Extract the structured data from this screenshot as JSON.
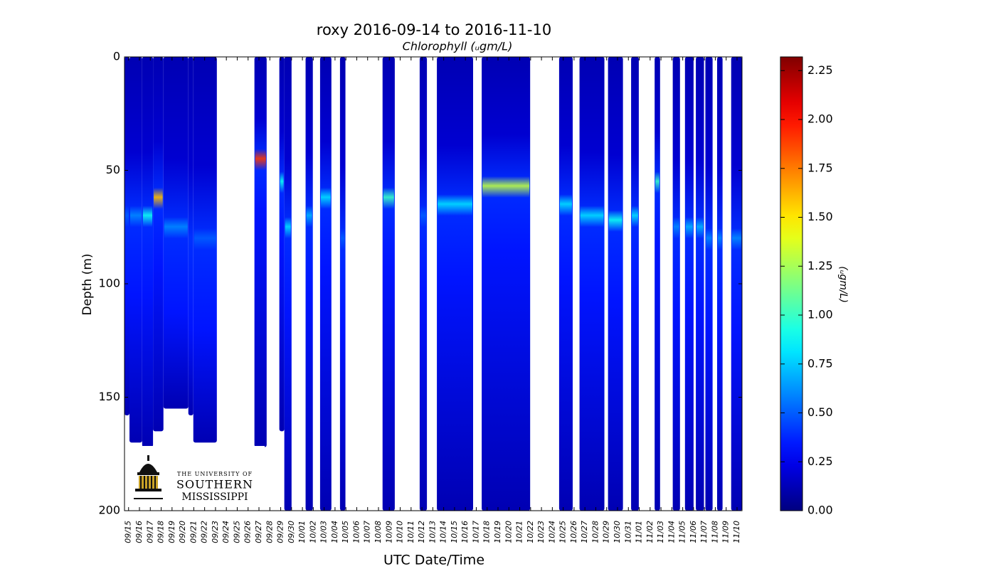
{
  "chart_data": {
    "type": "section",
    "title": "roxy 2016-09-14 to 2016-11-10",
    "subtitle": "Chlorophyll (ᵤgm/L)",
    "y_label": "Depth (m)",
    "x_label": "UTC Date/Time",
    "colorbar_label": "(ᵤgm/L)",
    "ylim": [
      0,
      200
    ],
    "y_inverted": true,
    "yticks": [
      0,
      50,
      100,
      150,
      200
    ],
    "xlim": [
      "09/14 15:00",
      "11/10 11:00"
    ],
    "xticks": [
      "09/15",
      "09/16",
      "09/17",
      "09/18",
      "09/19",
      "09/20",
      "09/21",
      "09/22",
      "09/23",
      "09/24",
      "09/25",
      "09/26",
      "09/27",
      "09/28",
      "09/29",
      "09/30",
      "10/01",
      "10/02",
      "10/03",
      "10/04",
      "10/05",
      "10/06",
      "10/07",
      "10/08",
      "10/09",
      "10/10",
      "10/11",
      "10/12",
      "10/13",
      "10/14",
      "10/15",
      "10/16",
      "10/17",
      "10/18",
      "10/19",
      "10/20",
      "10/21",
      "10/22",
      "10/23",
      "10/24",
      "10/25",
      "10/26",
      "10/27",
      "10/28",
      "10/29",
      "10/30",
      "10/31",
      "11/01",
      "11/02",
      "11/03",
      "11/04",
      "11/05",
      "11/06",
      "11/07",
      "11/08",
      "11/09",
      "11/10"
    ],
    "clim": [
      0,
      2.32
    ],
    "cticks": [
      {
        "value": 0,
        "label": "0.00"
      },
      {
        "value": 0.25,
        "label": "0.25"
      },
      {
        "value": 0.5,
        "label": "0.50"
      },
      {
        "value": 0.75,
        "label": "0.75"
      },
      {
        "value": 1,
        "label": "1.00"
      },
      {
        "value": 1.25,
        "label": "1.25"
      },
      {
        "value": 1.5,
        "label": "1.50"
      },
      {
        "value": 1.75,
        "label": "1.75"
      },
      {
        "value": 2,
        "label": "2.00"
      },
      {
        "value": 2.25,
        "label": "2.25"
      }
    ],
    "x": [
      "09/14 15:00",
      "09/15 02:00",
      "09/16 06:00",
      "09/17 06:00",
      "09/18 05:00",
      "09/20 12:00",
      "09/20 23:00",
      "09/26 14:00",
      "09/28 21:00",
      "09/29 08:00",
      "10/01 07:00",
      "10/02 15:00",
      "10/04 11:00",
      "10/08 09:00",
      "10/11 19:00",
      "10/13 09:00",
      "10/17 12:00",
      "10/24 15:00",
      "10/26 12:00",
      "10/29 03:00",
      "10/31 06:00",
      "11/02 10:00",
      "11/04 02:00",
      "11/05 05:00",
      "11/06 05:00",
      "11/07 02:00",
      "11/08 04:00",
      "11/09 11:00"
    ],
    "x_end": [
      "09/15 02:00",
      "09/16 06:00",
      "09/17 06:00",
      "09/18 05:00",
      "09/20 12:00",
      "09/20 23:00",
      "09/23 03:00",
      "09/27 17:00",
      "09/29 08:00",
      "09/30 00:00",
      "10/01 23:00",
      "10/03 16:00",
      "10/04 23:00",
      "10/09 12:00",
      "10/12 11:00",
      "10/16 17:00",
      "10/21 23:00",
      "10/25 21:00",
      "10/28 19:00",
      "10/30 12:00",
      "10/31 23:00",
      "11/02 22:00",
      "11/04 18:00",
      "11/06 00:00",
      "11/06 23:00",
      "11/07 18:00",
      "11/08 16:00",
      "11/10 11:00"
    ],
    "depth": [
      158,
      170,
      172,
      165,
      155,
      158,
      170,
      172,
      165,
      200,
      200,
      200,
      200,
      200,
      200,
      200,
      200,
      200,
      200,
      200,
      200,
      200,
      200,
      200,
      200,
      200,
      200,
      200
    ],
    "peak": [
      0.5,
      0.6,
      0.9,
      1.6,
      0.6,
      0.4,
      0.5,
      1.9,
      0.9,
      0.8,
      0.7,
      0.8,
      0.5,
      1.0,
      0.5,
      0.8,
      1.3,
      0.8,
      0.8,
      0.9,
      0.8,
      1.0,
      0.6,
      0.7,
      0.7,
      0.6,
      0.6,
      0.6
    ],
    "peak_depth": [
      70,
      70,
      70,
      62,
      75,
      80,
      80,
      45,
      55,
      75,
      70,
      62,
      80,
      62,
      70,
      65,
      57,
      65,
      70,
      72,
      70,
      55,
      75,
      75,
      75,
      80,
      80,
      80
    ]
  },
  "logo": {
    "line1": "THE UNIVERSITY OF",
    "line2": "SOUTHERN",
    "line3": "MISSISSIPPI"
  }
}
